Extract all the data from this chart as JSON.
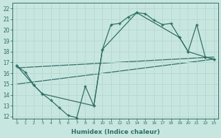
{
  "xlabel": "Humidex (Indice chaleur)",
  "background_color": "#c8e6e0",
  "grid_color": "#b8d8d0",
  "line_color": "#2e6e65",
  "xlim": [
    -0.5,
    23.5
  ],
  "ylim": [
    11.8,
    22.5
  ],
  "yticks": [
    12,
    13,
    14,
    15,
    16,
    17,
    18,
    19,
    20,
    21,
    22
  ],
  "xticks": [
    0,
    1,
    2,
    3,
    4,
    5,
    6,
    7,
    8,
    9,
    10,
    11,
    12,
    13,
    14,
    15,
    16,
    17,
    18,
    19,
    20,
    21,
    22,
    23
  ],
  "line_jagged_x": [
    0,
    1,
    2,
    3,
    4,
    5,
    6,
    7,
    8,
    9,
    10,
    11,
    12,
    13,
    14,
    15,
    16,
    17,
    18,
    19,
    20,
    21,
    22,
    23
  ],
  "line_jagged_y": [
    16.7,
    16.1,
    14.9,
    14.1,
    13.5,
    12.8,
    12.1,
    11.9,
    14.8,
    13.0,
    18.2,
    20.5,
    20.6,
    21.2,
    21.6,
    21.5,
    20.9,
    20.5,
    20.6,
    19.3,
    18.0,
    20.5,
    17.5,
    17.3
  ],
  "line_upper_x": [
    0,
    2,
    3,
    9,
    10,
    14,
    19,
    20,
    22,
    23
  ],
  "line_upper_y": [
    16.7,
    14.9,
    14.1,
    13.0,
    18.2,
    21.6,
    19.3,
    18.0,
    17.5,
    17.3
  ],
  "line_trend1_x": [
    0,
    23
  ],
  "line_trend1_y": [
    16.5,
    17.5
  ],
  "line_trend2_x": [
    0,
    23
  ],
  "line_trend2_y": [
    15.0,
    17.3
  ]
}
